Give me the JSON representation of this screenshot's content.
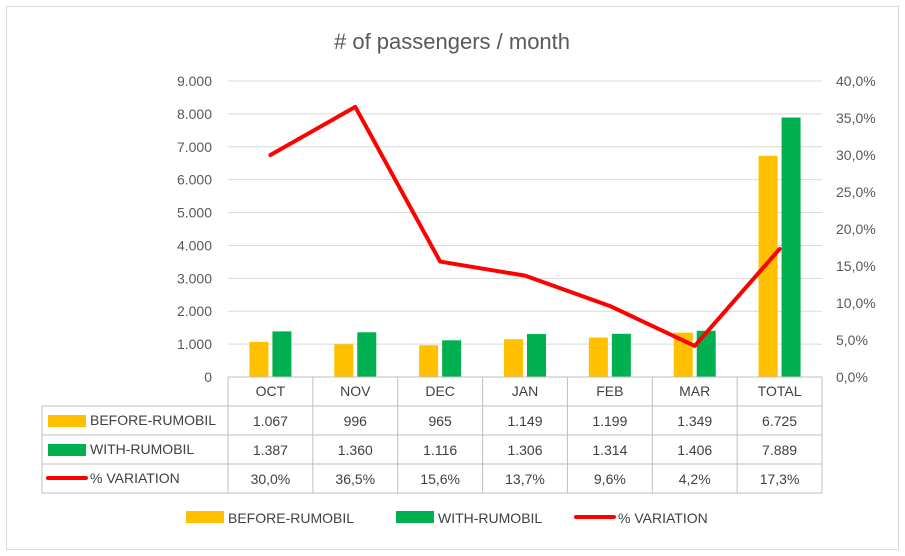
{
  "chart_data": {
    "type": "bar",
    "title": "# of passengers / month",
    "categories": [
      "OCT",
      "NOV",
      "DEC",
      "JAN",
      "FEB",
      "MAR",
      "TOTAL"
    ],
    "series": [
      {
        "name": "BEFORE-RUMOBIL",
        "kind": "bar",
        "axis": "left",
        "color": "#FFC000",
        "values": [
          1067,
          996,
          965,
          1149,
          1199,
          1349,
          6725
        ],
        "labels": [
          "1.067",
          "996",
          "965",
          "1.149",
          "1.199",
          "1.349",
          "6.725"
        ]
      },
      {
        "name": "WITH-RUMOBIL",
        "kind": "bar",
        "axis": "left",
        "color": "#00B050",
        "values": [
          1387,
          1360,
          1116,
          1306,
          1314,
          1406,
          7889
        ],
        "labels": [
          "1.387",
          "1.360",
          "1.116",
          "1.306",
          "1.314",
          "1.406",
          "7.889"
        ]
      },
      {
        "name": "% VARIATION",
        "kind": "line",
        "axis": "right",
        "color": "#FF0000",
        "values": [
          30.0,
          36.5,
          15.6,
          13.7,
          9.6,
          4.2,
          17.3
        ],
        "labels": [
          "30,0%",
          "36,5%",
          "15,6%",
          "13,7%",
          "9,6%",
          "4,2%",
          "17,3%"
        ]
      }
    ],
    "y_left": {
      "ylim": [
        0,
        9000
      ],
      "ticks": [
        0,
        1000,
        2000,
        3000,
        4000,
        5000,
        6000,
        7000,
        8000,
        9000
      ],
      "tick_labels": [
        "0",
        "1.000",
        "2.000",
        "3.000",
        "4.000",
        "5.000",
        "6.000",
        "7.000",
        "8.000",
        "9.000"
      ]
    },
    "y_right": {
      "ylim": [
        0,
        40
      ],
      "ticks": [
        0,
        5,
        10,
        15,
        20,
        25,
        30,
        35,
        40
      ],
      "tick_labels": [
        "0,0%",
        "5,0%",
        "10,0%",
        "15,0%",
        "20,0%",
        "25,0%",
        "30,0%",
        "35,0%",
        "40,0%"
      ]
    },
    "grid": true,
    "legend": "bottom",
    "data_table": true
  }
}
